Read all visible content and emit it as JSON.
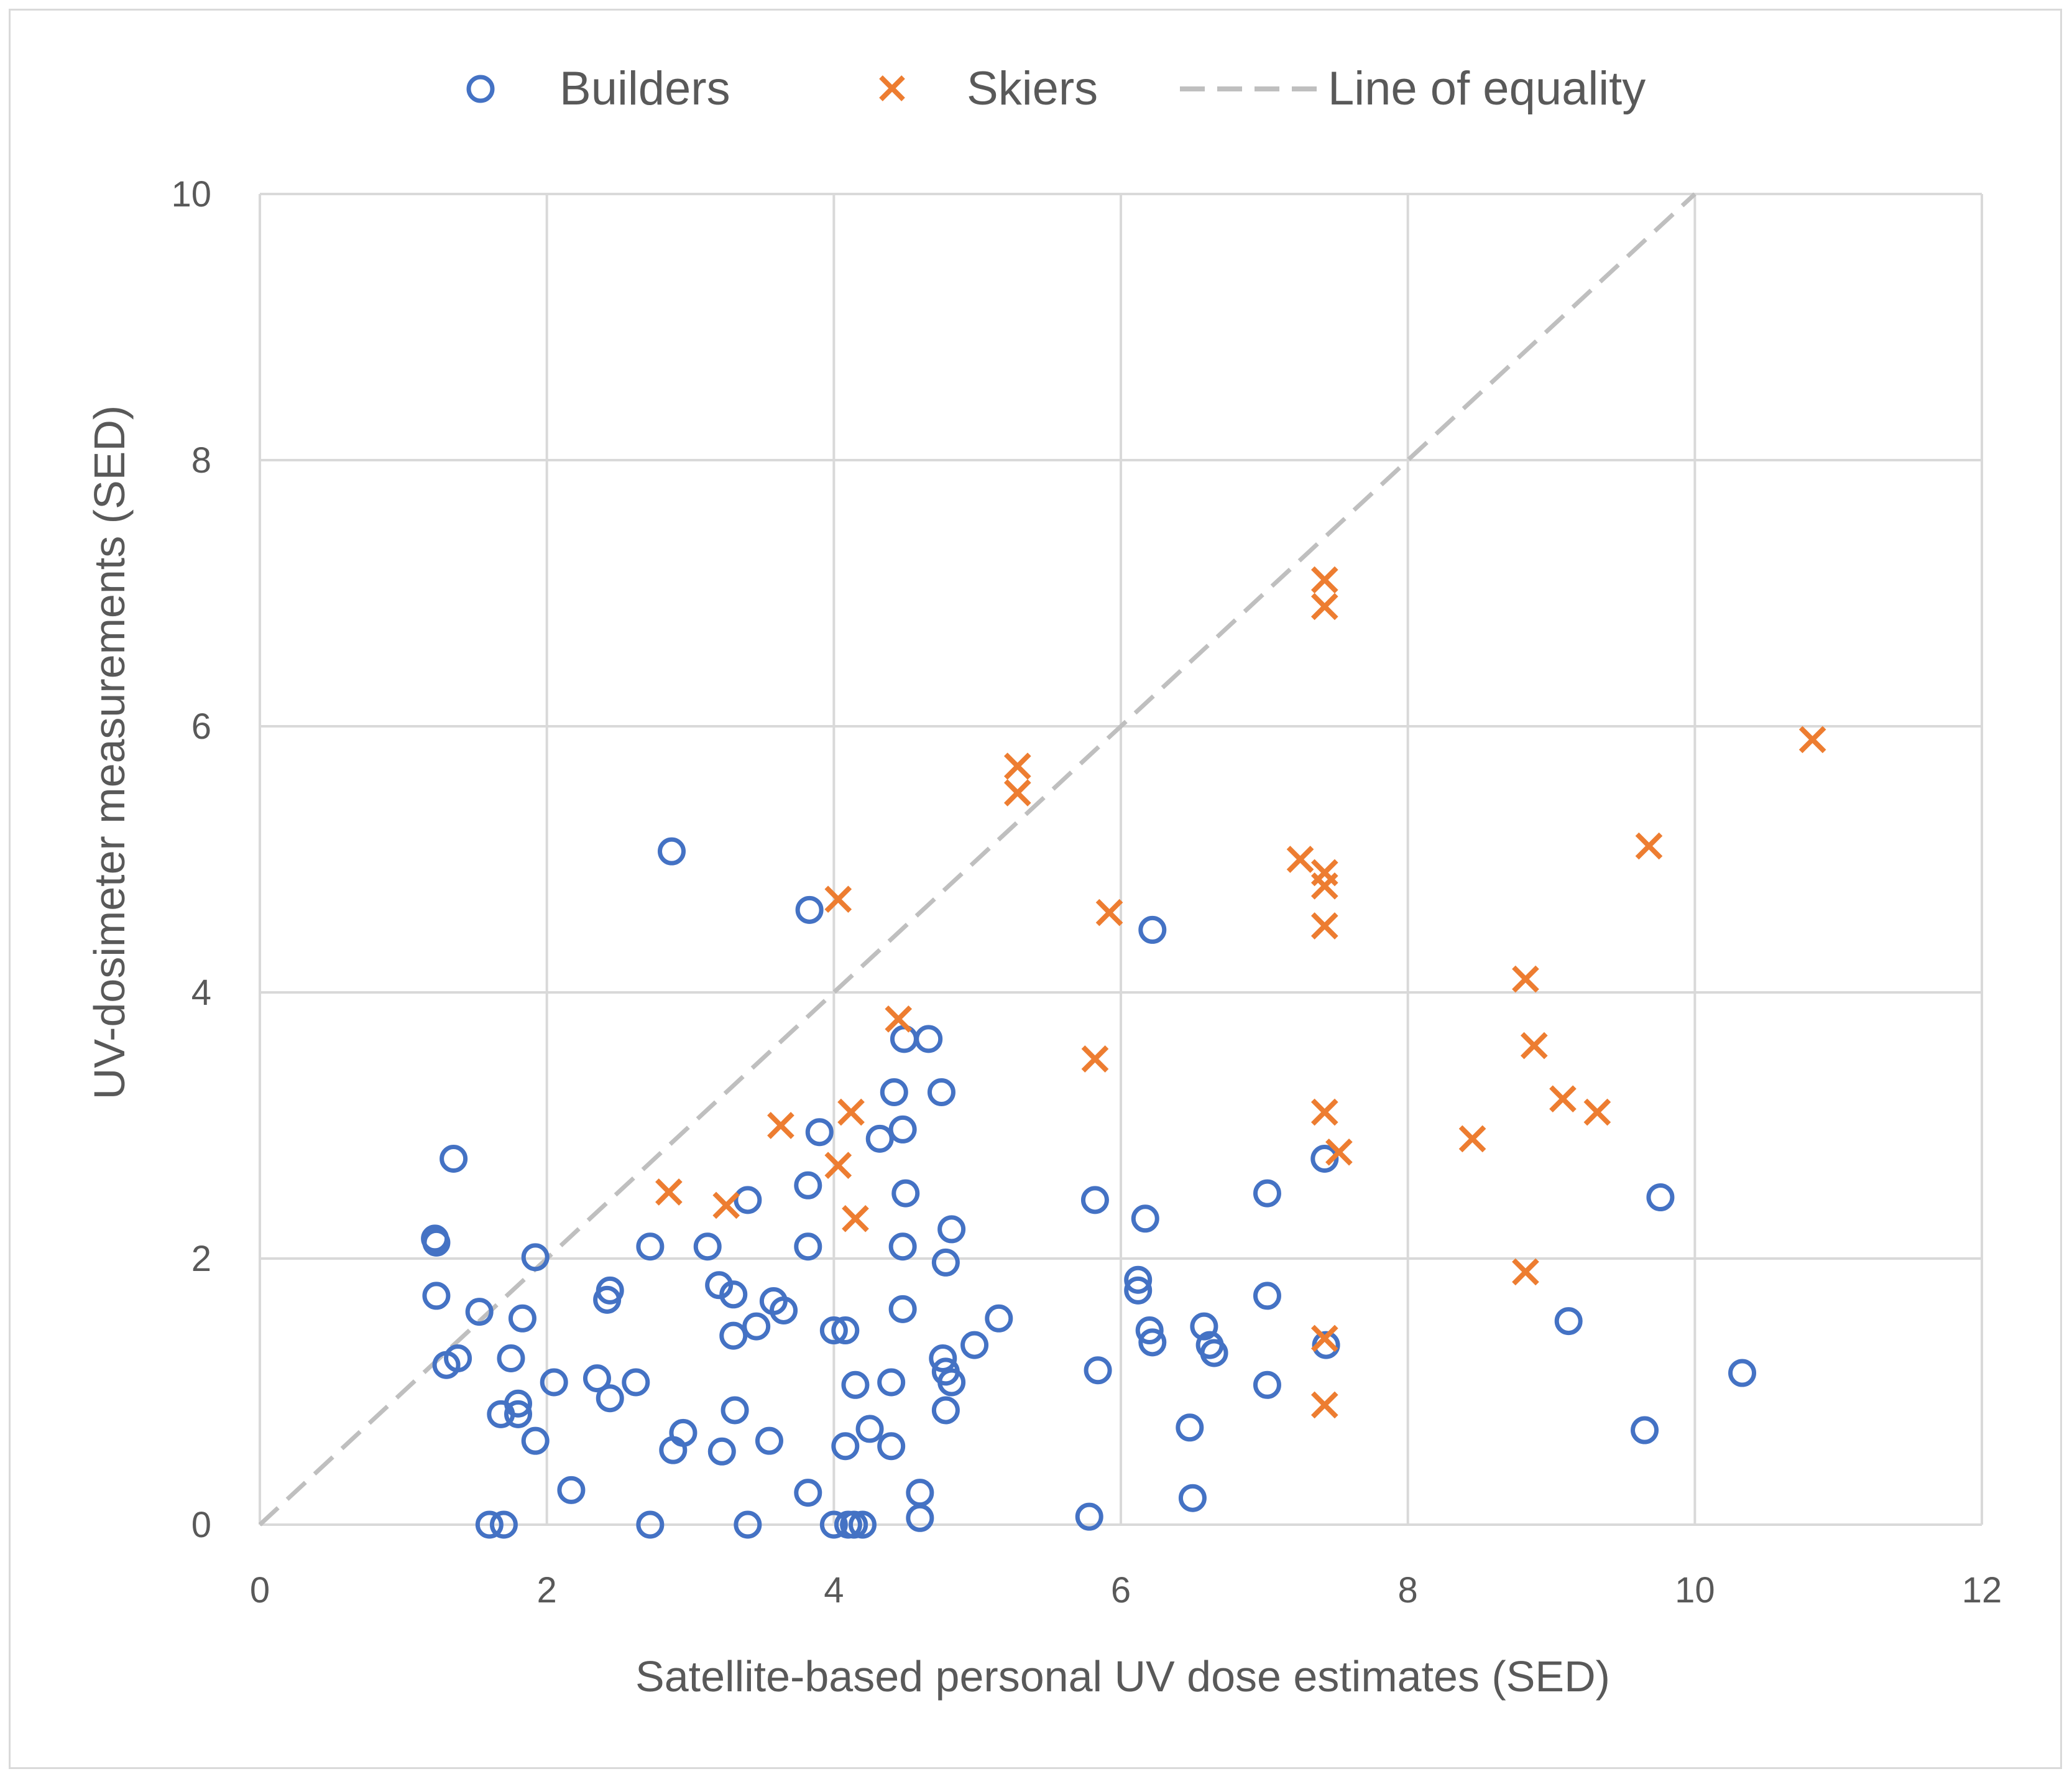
{
  "chart_data": {
    "type": "scatter",
    "title": "",
    "xlabel": "Satellite-based personal UV dose estimates (SED)",
    "ylabel": "UV-dosimeter measurements (SED)",
    "xlim": [
      0,
      12
    ],
    "ylim": [
      0,
      10
    ],
    "xticks": [
      0,
      2,
      4,
      6,
      8,
      10,
      12
    ],
    "yticks": [
      0,
      2,
      4,
      6,
      8,
      10
    ],
    "grid": true,
    "legend_position": "top",
    "colors": {
      "builders": "#4472C4",
      "skiers": "#ED7D31",
      "equality": "#BFBFBF",
      "grid": "#D9D9D9",
      "text": "#595959"
    },
    "series": [
      {
        "name": "Builders",
        "marker": "circle",
        "points": [
          [
            1.22,
            2.15
          ],
          [
            1.23,
            2.12
          ],
          [
            1.23,
            1.72
          ],
          [
            1.35,
            2.75
          ],
          [
            1.53,
            1.6
          ],
          [
            1.3,
            1.2
          ],
          [
            1.38,
            1.25
          ],
          [
            1.6,
            0.0
          ],
          [
            1.7,
            0.0
          ],
          [
            1.68,
            0.83
          ],
          [
            1.8,
            0.83
          ],
          [
            1.8,
            0.91
          ],
          [
            1.75,
            1.25
          ],
          [
            1.83,
            1.55
          ],
          [
            1.92,
            0.63
          ],
          [
            1.92,
            2.01
          ],
          [
            2.05,
            1.07
          ],
          [
            2.17,
            0.26
          ],
          [
            2.35,
            1.1
          ],
          [
            2.42,
            1.69
          ],
          [
            2.44,
            1.76
          ],
          [
            2.44,
            0.95
          ],
          [
            2.62,
            1.07
          ],
          [
            2.72,
            2.09
          ],
          [
            2.72,
            0.0
          ],
          [
            2.87,
            5.06
          ],
          [
            2.88,
            0.56
          ],
          [
            2.95,
            0.69
          ],
          [
            3.12,
            2.09
          ],
          [
            3.2,
            1.8
          ],
          [
            3.22,
            0.55
          ],
          [
            3.3,
            1.73
          ],
          [
            3.3,
            1.42
          ],
          [
            3.31,
            0.86
          ],
          [
            3.4,
            2.44
          ],
          [
            3.4,
            0.0
          ],
          [
            3.46,
            1.49
          ],
          [
            3.55,
            0.63
          ],
          [
            3.58,
            1.68
          ],
          [
            3.65,
            1.61
          ],
          [
            3.82,
            2.55
          ],
          [
            3.82,
            2.09
          ],
          [
            3.82,
            0.24
          ],
          [
            3.83,
            4.62
          ],
          [
            3.9,
            2.95
          ],
          [
            4.0,
            1.46
          ],
          [
            4.0,
            0.0
          ],
          [
            4.08,
            1.46
          ],
          [
            4.1,
            0.0
          ],
          [
            4.08,
            0.59
          ],
          [
            4.14,
            0.0
          ],
          [
            4.15,
            1.05
          ],
          [
            4.2,
            0.0
          ],
          [
            4.25,
            0.72
          ],
          [
            4.32,
            2.9
          ],
          [
            4.4,
            1.07
          ],
          [
            4.4,
            0.59
          ],
          [
            4.42,
            3.25
          ],
          [
            4.48,
            2.09
          ],
          [
            4.48,
            2.97
          ],
          [
            4.48,
            1.62
          ],
          [
            4.49,
            3.65
          ],
          [
            4.5,
            2.49
          ],
          [
            4.6,
            0.24
          ],
          [
            4.6,
            0.05
          ],
          [
            4.66,
            3.65
          ],
          [
            4.75,
            3.25
          ],
          [
            4.76,
            1.25
          ],
          [
            4.78,
            1.15
          ],
          [
            4.78,
            0.86
          ],
          [
            4.78,
            1.97
          ],
          [
            4.82,
            1.07
          ],
          [
            4.82,
            2.22
          ],
          [
            4.98,
            1.35
          ],
          [
            5.15,
            1.55
          ],
          [
            5.78,
            0.06
          ],
          [
            5.82,
            2.44
          ],
          [
            5.84,
            1.16
          ],
          [
            6.12,
            1.84
          ],
          [
            6.12,
            1.76
          ],
          [
            6.17,
            2.3
          ],
          [
            6.2,
            1.46
          ],
          [
            6.22,
            4.47
          ],
          [
            6.22,
            1.37
          ],
          [
            6.48,
            0.73
          ],
          [
            6.5,
            0.2
          ],
          [
            6.58,
            1.49
          ],
          [
            6.62,
            1.35
          ],
          [
            6.65,
            1.29
          ],
          [
            7.02,
            2.49
          ],
          [
            7.02,
            1.72
          ],
          [
            7.02,
            1.05
          ],
          [
            7.42,
            2.75
          ],
          [
            7.43,
            1.35
          ],
          [
            9.12,
            1.53
          ],
          [
            9.65,
            0.71
          ],
          [
            9.76,
            2.46
          ],
          [
            10.33,
            1.14
          ]
        ]
      },
      {
        "name": "Skiers",
        "marker": "x",
        "points": [
          [
            2.85,
            2.5
          ],
          [
            3.25,
            2.4
          ],
          [
            3.63,
            3.0
          ],
          [
            4.03,
            4.7
          ],
          [
            4.03,
            2.7
          ],
          [
            4.12,
            3.1
          ],
          [
            4.15,
            2.3
          ],
          [
            4.45,
            3.8
          ],
          [
            5.28,
            5.7
          ],
          [
            5.28,
            5.5
          ],
          [
            5.82,
            3.5
          ],
          [
            5.92,
            4.6
          ],
          [
            7.25,
            5.0
          ],
          [
            7.42,
            7.1
          ],
          [
            7.42,
            6.9
          ],
          [
            7.42,
            4.9
          ],
          [
            7.42,
            4.8
          ],
          [
            7.42,
            4.5
          ],
          [
            7.42,
            3.1
          ],
          [
            7.52,
            2.8
          ],
          [
            7.42,
            1.4
          ],
          [
            7.42,
            0.9
          ],
          [
            8.45,
            2.9
          ],
          [
            8.82,
            4.1
          ],
          [
            8.88,
            3.6
          ],
          [
            8.82,
            1.9
          ],
          [
            9.08,
            3.2
          ],
          [
            9.32,
            3.1
          ],
          [
            9.68,
            5.1
          ],
          [
            10.82,
            5.9
          ]
        ]
      },
      {
        "name": "Line of equality",
        "marker": "dashed-line",
        "points": [
          [
            0,
            0
          ],
          [
            10,
            10
          ]
        ]
      }
    ]
  }
}
